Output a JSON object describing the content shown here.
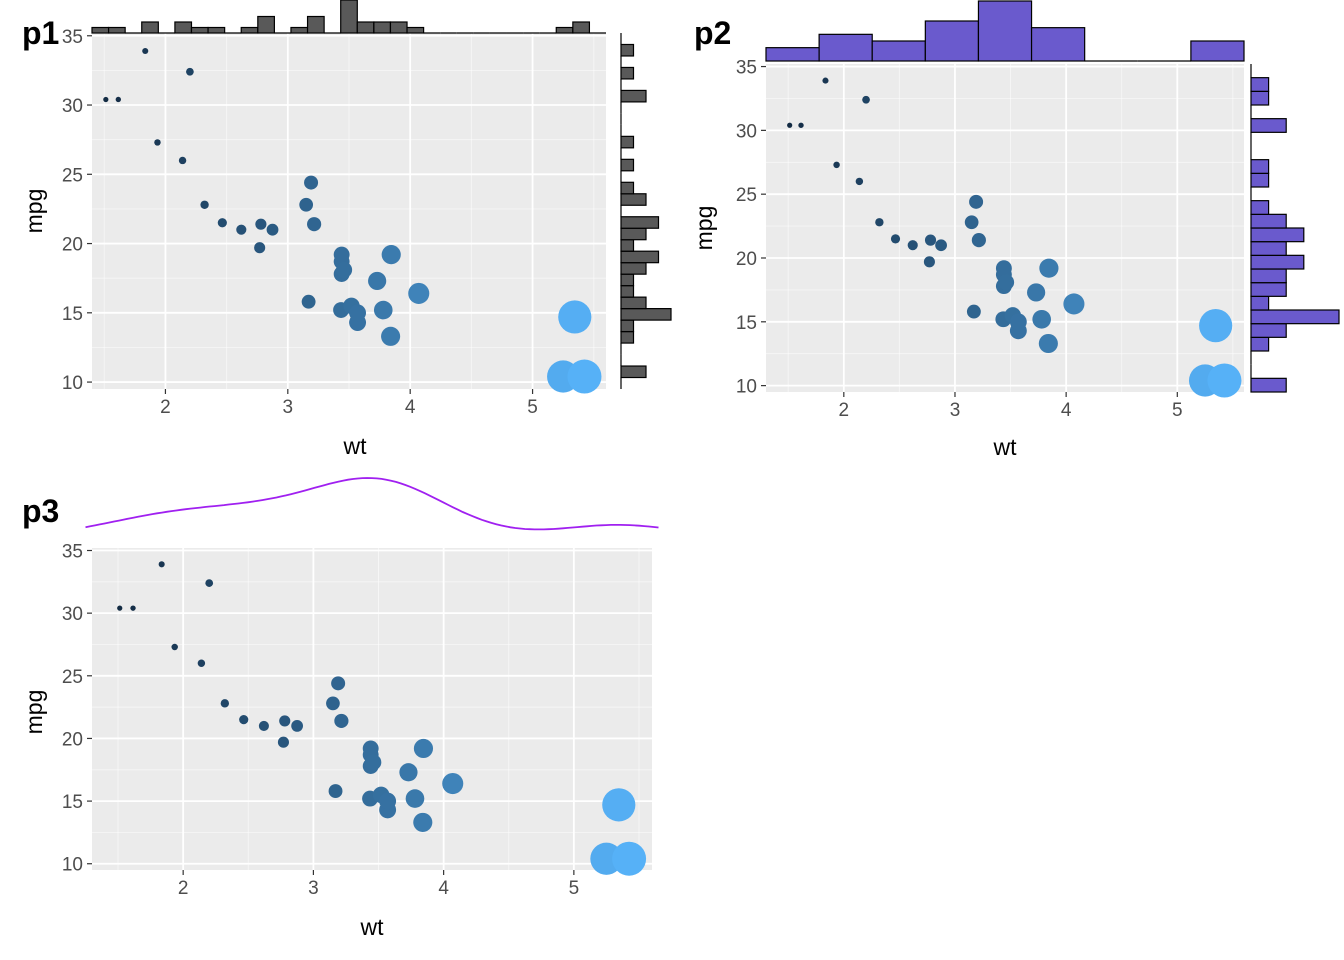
{
  "colors": {
    "panel_bg": "#ebebeb",
    "grid_major": "#ffffff",
    "tick_label": "#4d4d4d",
    "point_low": "#132b43",
    "point_high": "#56b1f7",
    "hist_p1_fill": "#595959",
    "hist_p2_fill": "#6a5acd",
    "density_p3": "#a020f0"
  },
  "chart_data": [
    {
      "id": "p1",
      "tag": "p1",
      "type": "scatter",
      "marginal": "histogram",
      "marginal_color": "#595959",
      "xlabel": "wt",
      "ylabel": "mpg",
      "xlim": [
        1.4,
        5.6
      ],
      "ylim": [
        9.5,
        35.2
      ],
      "xticks": [
        2,
        3,
        4,
        5
      ],
      "yticks": [
        10,
        15,
        20,
        25,
        30,
        35
      ],
      "grid": true,
      "size_and_color_by": "wt",
      "x_hist_bins": 31,
      "y_hist_bins": 31
    },
    {
      "id": "p2",
      "tag": "p2",
      "type": "scatter",
      "marginal": "histogram",
      "marginal_color": "#6a5acd",
      "xlabel": "wt",
      "ylabel": "mpg",
      "xlim": [
        1.3,
        5.6
      ],
      "ylim": [
        9.5,
        35.2
      ],
      "xticks": [
        2,
        3,
        4,
        5
      ],
      "yticks": [
        10,
        15,
        20,
        25,
        30,
        35
      ],
      "grid": true,
      "size_and_color_by": "wt",
      "x_hist_bins": 9,
      "y_hist_bins": 24
    },
    {
      "id": "p3",
      "tag": "p3",
      "type": "scatter",
      "marginal": "density",
      "marginal_color": "#a020f0",
      "xlabel": "wt",
      "ylabel": "mpg",
      "xlim": [
        1.3,
        5.6
      ],
      "ylim": [
        9.5,
        35.2
      ],
      "xticks": [
        2,
        3,
        4,
        5
      ],
      "yticks": [
        10,
        15,
        20,
        25,
        30,
        35
      ],
      "grid": true,
      "size_and_color_by": "wt"
    }
  ],
  "points": {
    "wt": [
      2.62,
      2.875,
      2.32,
      3.215,
      3.44,
      3.46,
      3.57,
      3.19,
      3.15,
      3.44,
      3.44,
      4.07,
      3.73,
      3.78,
      5.25,
      5.424,
      5.345,
      2.2,
      1.615,
      1.835,
      2.465,
      3.52,
      3.435,
      3.84,
      3.845,
      1.935,
      2.14,
      1.513,
      3.17,
      2.77,
      3.57,
      2.78
    ],
    "mpg": [
      21.0,
      21.0,
      22.8,
      21.4,
      18.7,
      18.1,
      14.3,
      24.4,
      22.8,
      19.2,
      17.8,
      16.4,
      17.3,
      15.2,
      10.4,
      10.4,
      14.7,
      32.4,
      30.4,
      33.9,
      21.5,
      15.5,
      15.2,
      13.3,
      19.2,
      27.3,
      26.0,
      30.4,
      15.8,
      19.7,
      15.0,
      21.4
    ]
  }
}
